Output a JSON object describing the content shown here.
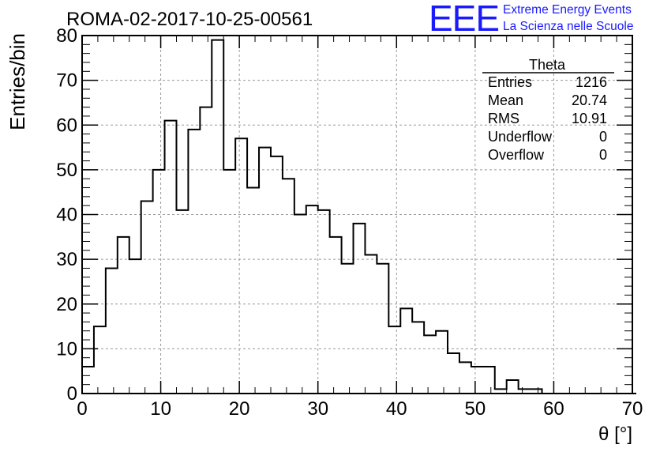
{
  "title": "ROMA-02-2017-10-25-00561",
  "logo": {
    "mark": "EEE",
    "line1": "Extreme Energy Events",
    "line2": "La Scienza nelle Scuole",
    "color": "#1a1aff"
  },
  "stats_box": {
    "name": "Theta",
    "rows": [
      {
        "label": "Entries",
        "value": "1216"
      },
      {
        "label": "Mean",
        "value": "20.74"
      },
      {
        "label": "RMS",
        "value": "10.91"
      },
      {
        "label": "Underflow",
        "value": "0"
      },
      {
        "label": "Overflow",
        "value": "0"
      }
    ]
  },
  "chart_data": {
    "type": "bar",
    "style": "step-histogram",
    "xlabel": "θ [°]",
    "ylabel": "Entries/bin",
    "xlim": [
      0,
      70
    ],
    "ylim": [
      0,
      80
    ],
    "x_ticks": [
      "0",
      "10",
      "20",
      "30",
      "40",
      "50",
      "60",
      "70"
    ],
    "y_ticks": [
      "0",
      "10",
      "20",
      "30",
      "40",
      "50",
      "60",
      "70",
      "80"
    ],
    "grid": true,
    "bin_width": 1.5,
    "bin_edges_start": 0,
    "values": [
      6,
      15,
      28,
      35,
      30,
      43,
      50,
      61,
      41,
      59,
      64,
      79,
      50,
      57,
      46,
      55,
      53,
      48,
      40,
      42,
      41,
      35,
      29,
      38,
      31,
      29,
      15,
      19,
      16,
      13,
      14,
      9,
      7,
      6,
      6,
      1,
      3,
      1,
      1,
      0,
      0,
      0,
      0,
      0,
      0,
      0,
      0
    ],
    "line_color": "#000000"
  }
}
